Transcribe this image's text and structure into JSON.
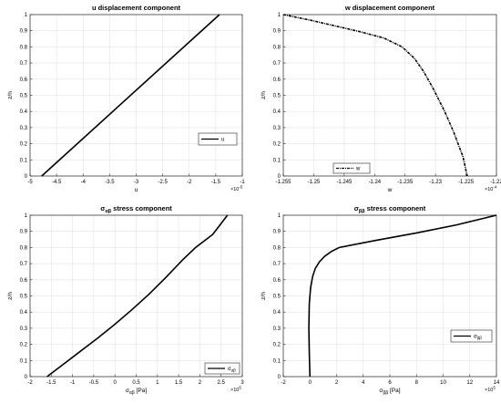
{
  "chart_data": [
    {
      "type": "line",
      "title": "u displacement component",
      "xlabel": "u",
      "xlabel_sub": "",
      "ylabel": "z/h",
      "xlim": [
        -5,
        -1
      ],
      "ylim": [
        0,
        1
      ],
      "xticks": [
        "-5",
        "-4.5",
        "-4",
        "-3.5",
        "-3",
        "-2.5",
        "-2",
        "-1.5",
        "-1"
      ],
      "yticks": [
        "0",
        "0.1",
        "0.2",
        "0.3",
        "0.4",
        "0.5",
        "0.6",
        "0.7",
        "0.8",
        "0.9",
        "1"
      ],
      "x_exponent": "×10",
      "x_exponent_power": "-5",
      "grid": true,
      "legend_position": "middle-right",
      "series": [
        {
          "name": "u",
          "style": "solid",
          "color": "#000000",
          "x": [
            -4.78,
            -1.43
          ],
          "y": [
            0,
            1
          ]
        }
      ]
    },
    {
      "type": "line",
      "title": "w displacement component",
      "xlabel": "w",
      "xlabel_sub": "",
      "ylabel": "z/h",
      "xlim": [
        -1.255,
        -1.22
      ],
      "ylim": [
        0,
        1
      ],
      "xticks": [
        "-1.255",
        "-1.25",
        "-1.245",
        "-1.24",
        "-1.235",
        "-1.23",
        "-1.225",
        "-1.22"
      ],
      "yticks": [
        "0",
        "0.1",
        "0.2",
        "0.3",
        "0.4",
        "0.5",
        "0.6",
        "0.7",
        "0.8",
        "0.9",
        "1"
      ],
      "x_exponent": "×10",
      "x_exponent_power": "-4",
      "grid": true,
      "legend_position": "bottom-left",
      "series": [
        {
          "name": "w",
          "style": "dashdot",
          "color": "#000000",
          "x": [
            -1.255,
            -1.2505,
            -1.2465,
            -1.2425,
            -1.2385,
            -1.2355,
            -1.2335,
            -1.232,
            -1.2305,
            -1.2285,
            -1.227,
            -1.2255,
            -1.2248
          ],
          "y": [
            1.0,
            0.965,
            0.93,
            0.895,
            0.855,
            0.8,
            0.73,
            0.65,
            0.55,
            0.4,
            0.27,
            0.12,
            0.0
          ]
        }
      ]
    },
    {
      "type": "line",
      "title": "σαβ stress component",
      "title_sigma": "σ",
      "title_sub": "αβ",
      "title_rest": " stress component",
      "xlabel": "σ",
      "xlabel_sub": "αβ",
      "xlabel_unit": " [Pa]",
      "ylabel": "z/h",
      "xlim": [
        -2,
        3
      ],
      "ylim": [
        0,
        1
      ],
      "xticks": [
        "-2",
        "-1.5",
        "-1",
        "-0.5",
        "0",
        "0.5",
        "1",
        "1.5",
        "2",
        "2.5",
        "3"
      ],
      "yticks": [
        "0",
        "0.1",
        "0.2",
        "0.3",
        "0.4",
        "0.5",
        "0.6",
        "0.7",
        "0.8",
        "0.9",
        "1"
      ],
      "x_exponent": "×10",
      "x_exponent_power": "5",
      "grid": true,
      "legend_position": "bottom-right",
      "series": [
        {
          "name": "σαβ",
          "name_base": "σ",
          "name_sub": "αβ",
          "style": "solid",
          "color": "#000000",
          "x": [
            -1.6,
            -1.2,
            -0.8,
            -0.4,
            0.0,
            0.4,
            0.8,
            1.2,
            1.6,
            1.9,
            2.3,
            2.65
          ],
          "y": [
            0.0,
            0.08,
            0.16,
            0.24,
            0.325,
            0.415,
            0.51,
            0.615,
            0.725,
            0.8,
            0.88,
            1.0
          ]
        }
      ]
    },
    {
      "type": "line",
      "title": "σββ stress component",
      "title_sigma": "σ",
      "title_sub": "ββ",
      "title_rest": " stress component",
      "xlabel": "σ",
      "xlabel_sub": "ββ",
      "xlabel_unit": " [Pa]",
      "ylabel": "z/h",
      "xlim": [
        -2,
        14
      ],
      "ylim": [
        0,
        1
      ],
      "xticks": [
        "-2",
        "0",
        "2",
        "4",
        "6",
        "8",
        "10",
        "12",
        "14"
      ],
      "yticks": [
        "0",
        "0.1",
        "0.2",
        "0.3",
        "0.4",
        "0.5",
        "0.6",
        "0.7",
        "0.8",
        "0.9",
        "1"
      ],
      "x_exponent": "×10",
      "x_exponent_power": "5",
      "grid": true,
      "legend_position": "middle-right",
      "series": [
        {
          "name": "σββ",
          "name_base": "σ",
          "name_sub": "ββ",
          "style": "solid",
          "color": "#000000",
          "x": [
            0.0,
            -0.05,
            -0.08,
            -0.05,
            0.05,
            0.2,
            0.4,
            0.7,
            1.1,
            1.6,
            2.2,
            5.0,
            8.0,
            11.0,
            14.0
          ],
          "y": [
            0.0,
            0.15,
            0.3,
            0.45,
            0.55,
            0.62,
            0.67,
            0.71,
            0.745,
            0.775,
            0.8,
            0.845,
            0.89,
            0.94,
            1.0
          ]
        }
      ]
    }
  ]
}
